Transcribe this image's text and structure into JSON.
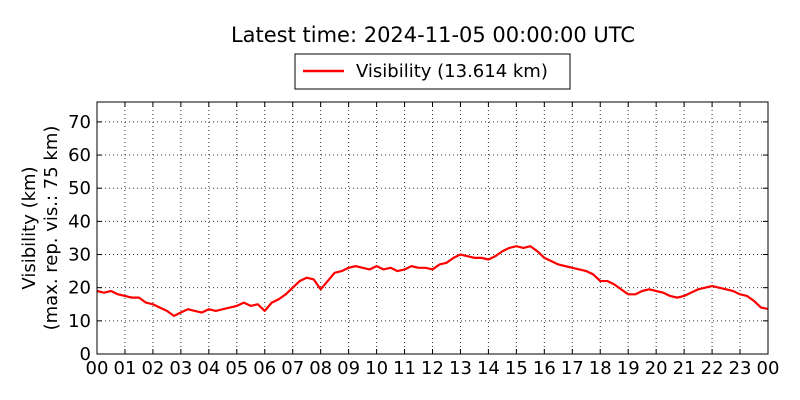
{
  "chart_data": {
    "type": "line",
    "title": "Latest time: 2024-11-05 00:00:00 UTC",
    "ylabel_line1": "Visibility (km)",
    "ylabel_line2": "(max. rep. vis.: 75 km)",
    "xlabel": "",
    "xlim": [
      0,
      24
    ],
    "ylim": [
      0,
      76
    ],
    "grid": true,
    "legend_position": "top-center",
    "x_ticks": [
      "00",
      "01",
      "02",
      "03",
      "04",
      "05",
      "06",
      "07",
      "08",
      "09",
      "10",
      "11",
      "12",
      "13",
      "14",
      "15",
      "16",
      "17",
      "18",
      "19",
      "20",
      "21",
      "22",
      "23",
      "00"
    ],
    "y_ticks": [
      0,
      10,
      20,
      30,
      40,
      50,
      60,
      70
    ],
    "series": [
      {
        "name": "Visibility (13.614 km)",
        "color": "#ff0000",
        "x": [
          0.0,
          0.25,
          0.5,
          0.75,
          1.0,
          1.25,
          1.5,
          1.75,
          2.0,
          2.25,
          2.5,
          2.75,
          3.0,
          3.25,
          3.5,
          3.75,
          4.0,
          4.25,
          4.5,
          4.75,
          5.0,
          5.25,
          5.5,
          5.75,
          6.0,
          6.25,
          6.5,
          6.75,
          7.0,
          7.25,
          7.5,
          7.75,
          8.0,
          8.25,
          8.5,
          8.75,
          9.0,
          9.25,
          9.5,
          9.75,
          10.0,
          10.25,
          10.5,
          10.75,
          11.0,
          11.25,
          11.5,
          11.75,
          12.0,
          12.25,
          12.5,
          12.75,
          13.0,
          13.25,
          13.5,
          13.75,
          14.0,
          14.25,
          14.5,
          14.75,
          15.0,
          15.25,
          15.5,
          15.75,
          16.0,
          16.25,
          16.5,
          16.75,
          17.0,
          17.25,
          17.5,
          17.75,
          18.0,
          18.25,
          18.5,
          18.75,
          19.0,
          19.25,
          19.5,
          19.75,
          20.0,
          20.25,
          20.5,
          20.75,
          21.0,
          21.25,
          21.5,
          21.75,
          22.0,
          22.25,
          22.5,
          22.75,
          23.0,
          23.25,
          23.5,
          23.75,
          24.0
        ],
        "y": [
          19.0,
          18.5,
          19.0,
          18.0,
          17.5,
          17.0,
          17.0,
          15.5,
          15.0,
          14.0,
          13.0,
          11.5,
          12.5,
          13.5,
          13.0,
          12.5,
          13.5,
          13.0,
          13.5,
          14.0,
          14.5,
          15.5,
          14.5,
          15.0,
          13.0,
          15.5,
          16.5,
          18.0,
          20.0,
          22.0,
          23.0,
          22.5,
          19.5,
          22.0,
          24.5,
          25.0,
          26.0,
          26.5,
          26.0,
          25.5,
          26.5,
          25.5,
          26.0,
          25.0,
          25.5,
          26.5,
          26.0,
          26.0,
          25.5,
          27.0,
          27.5,
          29.0,
          30.0,
          29.5,
          29.0,
          29.0,
          28.5,
          29.5,
          31.0,
          32.0,
          32.5,
          32.0,
          32.5,
          31.0,
          29.0,
          28.0,
          27.0,
          26.5,
          26.0,
          25.5,
          25.0,
          24.0,
          22.0,
          22.0,
          21.0,
          19.5,
          18.0,
          18.0,
          19.0,
          19.5,
          19.0,
          18.5,
          17.5,
          17.0,
          17.5,
          18.5,
          19.5,
          20.0,
          20.5,
          20.0,
          19.5,
          19.0,
          18.0,
          17.5,
          16.0,
          14.0,
          13.6
        ]
      }
    ]
  }
}
